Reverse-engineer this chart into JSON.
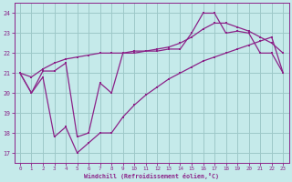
{
  "xlabel": "Windchill (Refroidissement éolien,°C)",
  "xlim": [
    -0.5,
    23.5
  ],
  "ylim": [
    16.5,
    24.5
  ],
  "yticks": [
    17,
    18,
    19,
    20,
    21,
    22,
    23,
    24
  ],
  "xticks": [
    0,
    1,
    2,
    3,
    4,
    5,
    6,
    7,
    8,
    9,
    10,
    11,
    12,
    13,
    14,
    15,
    16,
    17,
    18,
    19,
    20,
    21,
    22,
    23
  ],
  "bg_color": "#c5eaea",
  "grid_color": "#9dc8c8",
  "line_color": "#8b2288",
  "line1_x": [
    0,
    1,
    2,
    3,
    4,
    5,
    6,
    7,
    8,
    9,
    10,
    11,
    12,
    13,
    14,
    15,
    16,
    17,
    18,
    19,
    20,
    21,
    22,
    23
  ],
  "line1_y": [
    21.0,
    20.0,
    21.1,
    21.1,
    21.5,
    17.8,
    18.0,
    20.5,
    20.0,
    22.0,
    22.0,
    22.1,
    22.1,
    22.2,
    22.2,
    23.0,
    24.0,
    24.0,
    23.0,
    23.1,
    23.0,
    22.0,
    22.0,
    21.0
  ],
  "line2_x": [
    0,
    1,
    2,
    3,
    4,
    5,
    6,
    7,
    8,
    9,
    10,
    11,
    12,
    13,
    14,
    15,
    16,
    17,
    18,
    19,
    20,
    21,
    22,
    23
  ],
  "line2_y": [
    21.0,
    20.8,
    21.2,
    21.5,
    21.7,
    21.8,
    21.9,
    22.0,
    22.0,
    22.0,
    22.1,
    22.1,
    22.2,
    22.3,
    22.5,
    22.8,
    23.2,
    23.5,
    23.5,
    23.3,
    23.1,
    22.8,
    22.5,
    22.0
  ],
  "line3_x": [
    0,
    1,
    2,
    3,
    4,
    5,
    6,
    7,
    8,
    9,
    10,
    11,
    12,
    13,
    14,
    15,
    16,
    17,
    18,
    19,
    20,
    21,
    22,
    23
  ],
  "line3_y": [
    21.0,
    20.0,
    20.8,
    17.8,
    18.3,
    17.0,
    17.5,
    18.0,
    18.0,
    18.8,
    19.4,
    19.9,
    20.3,
    20.7,
    21.0,
    21.3,
    21.6,
    21.8,
    22.0,
    22.2,
    22.4,
    22.6,
    22.8,
    21.0
  ]
}
